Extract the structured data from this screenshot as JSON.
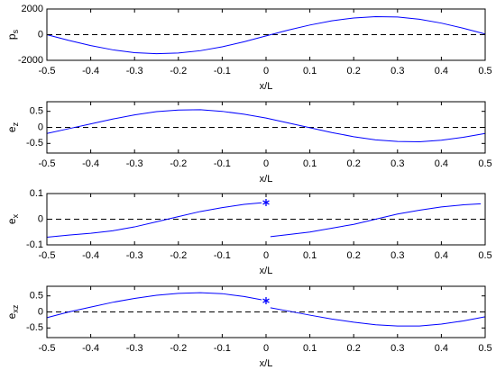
{
  "chart_data": [
    {
      "type": "line",
      "xlabel": "x/L",
      "ylabel": "p",
      "ylabel_sub": "s",
      "color": "#0000ff",
      "x": [
        -0.5,
        -0.45,
        -0.4,
        -0.35,
        -0.3,
        -0.25,
        -0.2,
        -0.15,
        -0.1,
        -0.05,
        0,
        0.05,
        0.1,
        0.15,
        0.2,
        0.25,
        0.3,
        0.35,
        0.4,
        0.45,
        0.5
      ],
      "values": [
        0,
        -450,
        -850,
        -1180,
        -1400,
        -1480,
        -1430,
        -1250,
        -950,
        -550,
        -100,
        350,
        750,
        1080,
        1300,
        1400,
        1380,
        1200,
        900,
        500,
        50
      ],
      "xlim": [
        -0.5,
        0.5
      ],
      "xticks": [
        -0.5,
        -0.4,
        -0.3,
        -0.2,
        -0.1,
        0,
        0.1,
        0.2,
        0.3,
        0.4,
        0.5
      ],
      "ylim": [
        -2000,
        2000
      ],
      "yticks": [
        -2000,
        0,
        2000
      ],
      "reference_line": 0
    },
    {
      "type": "line",
      "xlabel": "x/L",
      "ylabel": "e",
      "ylabel_sub": "z",
      "color": "#0000ff",
      "x": [
        -0.5,
        -0.45,
        -0.4,
        -0.35,
        -0.3,
        -0.25,
        -0.2,
        -0.15,
        -0.1,
        -0.05,
        0,
        0.05,
        0.1,
        0.15,
        0.2,
        0.25,
        0.3,
        0.35,
        0.4,
        0.45,
        0.5
      ],
      "values": [
        -0.19,
        -0.04,
        0.11,
        0.26,
        0.39,
        0.49,
        0.54,
        0.55,
        0.5,
        0.41,
        0.29,
        0.14,
        -0.01,
        -0.16,
        -0.29,
        -0.39,
        -0.44,
        -0.45,
        -0.4,
        -0.31,
        -0.19
      ],
      "xlim": [
        -0.5,
        0.5
      ],
      "xticks": [
        -0.5,
        -0.4,
        -0.3,
        -0.2,
        -0.1,
        0,
        0.1,
        0.2,
        0.3,
        0.4,
        0.5
      ],
      "ylim": [
        -0.8,
        0.8
      ],
      "yticks": [
        -0.5,
        0,
        0.5
      ],
      "reference_line": 0
    },
    {
      "type": "line",
      "xlabel": "x/L",
      "ylabel": "e",
      "ylabel_sub": "x",
      "color": "#0000ff",
      "x": [
        -0.5,
        -0.45,
        -0.4,
        -0.35,
        -0.3,
        -0.25,
        -0.2,
        -0.15,
        -0.1,
        -0.05,
        -0.01,
        0,
        0.01,
        0.05,
        0.1,
        0.15,
        0.2,
        0.25,
        0.3,
        0.35,
        0.4,
        0.45,
        0.49
      ],
      "values": [
        -0.07,
        -0.062,
        -0.055,
        -0.045,
        -0.03,
        -0.01,
        0.01,
        0.03,
        0.045,
        0.058,
        0.064,
        null,
        -0.068,
        -0.06,
        -0.05,
        -0.035,
        -0.02,
        0,
        0.02,
        0.035,
        0.048,
        0.056,
        0.06
      ],
      "markers": {
        "x": [
          0
        ],
        "y": [
          0.065
        ]
      },
      "xlim": [
        -0.5,
        0.5
      ],
      "xticks": [
        -0.5,
        -0.4,
        -0.3,
        -0.2,
        -0.1,
        0,
        0.1,
        0.2,
        0.3,
        0.4,
        0.5
      ],
      "ylim": [
        -0.1,
        0.1
      ],
      "yticks": [
        -0.1,
        0,
        0.1
      ],
      "reference_line": 0
    },
    {
      "type": "line",
      "xlabel": "x/L",
      "ylabel": "e",
      "ylabel_sub": "xz",
      "color": "#0000ff",
      "x": [
        -0.5,
        -0.45,
        -0.4,
        -0.35,
        -0.3,
        -0.25,
        -0.2,
        -0.15,
        -0.1,
        -0.05,
        -0.01,
        0,
        0.01,
        0.05,
        0.1,
        0.15,
        0.2,
        0.25,
        0.3,
        0.35,
        0.4,
        0.45,
        0.5
      ],
      "values": [
        -0.18,
        0,
        0.15,
        0.3,
        0.42,
        0.52,
        0.58,
        0.6,
        0.57,
        0.48,
        0.38,
        null,
        0.13,
        0.03,
        -0.1,
        -0.22,
        -0.32,
        -0.4,
        -0.44,
        -0.44,
        -0.38,
        -0.28,
        -0.15
      ],
      "markers": {
        "x": [
          0
        ],
        "y": [
          0.35
        ]
      },
      "xlim": [
        -0.5,
        0.5
      ],
      "xticks": [
        -0.5,
        -0.4,
        -0.3,
        -0.2,
        -0.1,
        0,
        0.1,
        0.2,
        0.3,
        0.4,
        0.5
      ],
      "ylim": [
        -0.8,
        0.8
      ],
      "yticks": [
        -0.5,
        0,
        0.5
      ],
      "reference_line": 0
    }
  ]
}
